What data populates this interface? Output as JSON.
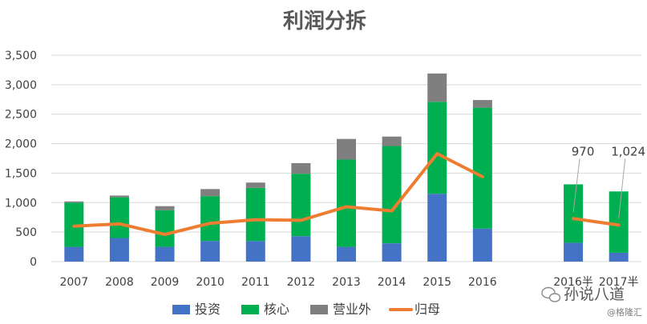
{
  "chart_data": {
    "type": "bar",
    "title": "利润分拆",
    "categories": [
      "2007",
      "2008",
      "2009",
      "2010",
      "2011",
      "2012",
      "2013",
      "2014",
      "2015",
      "2016",
      "",
      "2016半",
      "2017半"
    ],
    "ylim": [
      0,
      3500
    ],
    "yticks": [
      0,
      500,
      1000,
      1500,
      2000,
      2500,
      3000,
      3500
    ],
    "ytick_labels": [
      "0",
      "500",
      "1,000",
      "1,500",
      "2,000",
      "2,500",
      "3,000",
      "3,500"
    ],
    "grid": true,
    "legend_position": "bottom",
    "series": [
      {
        "name": "投资",
        "kind": "bar",
        "color": "#4472c4",
        "values": [
          250,
          400,
          250,
          350,
          350,
          430,
          250,
          310,
          1150,
          560,
          null,
          320,
          150
        ]
      },
      {
        "name": "核心",
        "kind": "bar",
        "color": "#00b050",
        "values": [
          750,
          690,
          620,
          760,
          900,
          1060,
          1480,
          1650,
          1560,
          2050,
          null,
          990,
          1040
        ]
      },
      {
        "name": "营业外",
        "kind": "bar",
        "color": "#7f7f7f",
        "values": [
          20,
          30,
          70,
          120,
          90,
          180,
          350,
          160,
          480,
          130,
          null,
          0,
          0
        ]
      },
      {
        "name": "归母",
        "kind": "line",
        "color": "#ed7d31",
        "values": [
          600,
          640,
          460,
          650,
          710,
          700,
          930,
          860,
          1830,
          1440,
          null,
          730,
          620
        ]
      }
    ],
    "annotations": [
      {
        "text": "970",
        "category": "2016半"
      },
      {
        "text": "1,024",
        "category": "2017半"
      }
    ]
  },
  "watermark": {
    "name": "孙说八道",
    "credit": "@格隆汇",
    "icon": "wechat-icon"
  }
}
